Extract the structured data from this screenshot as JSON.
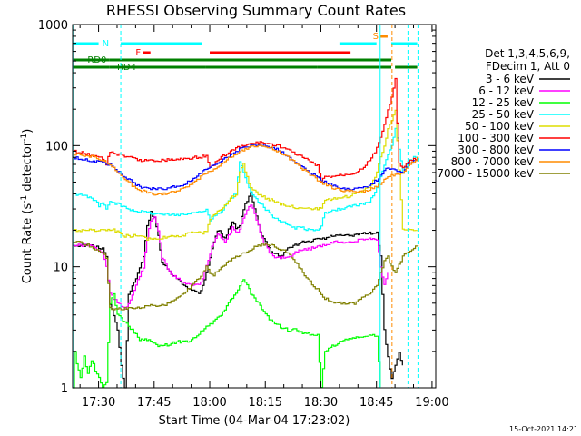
{
  "chart_data": {
    "type": "line",
    "title": "RHESSI Observing Summary Count Rates",
    "xlabel": "Start Time (04-Mar-04 17:23:02)",
    "ylabel_main": "Count Rate (s",
    "ylabel_sup": "-1",
    "ylabel_tail": " detector",
    "ylabel_close": ")",
    "yscale": "log",
    "ylim": [
      1,
      1000
    ],
    "xlim_min": [
      0,
      98
    ],
    "x_tick_labels": [
      {
        "m": 7,
        "label": "17:30"
      },
      {
        "m": 22,
        "label": "17:45"
      },
      {
        "m": 37,
        "label": "18:00"
      },
      {
        "m": 52,
        "label": "18:15"
      },
      {
        "m": 67,
        "label": "18:30"
      },
      {
        "m": 82,
        "label": "18:45"
      },
      {
        "m": 97,
        "label": "19:00"
      }
    ],
    "y_tick_labels": [
      {
        "v": 1,
        "label": "1"
      },
      {
        "v": 10,
        "label": "10"
      },
      {
        "v": 100,
        "label": "100"
      },
      {
        "v": 1000,
        "label": "1000"
      }
    ],
    "legend_header": [
      "Det 1,3,4,5,6,9,",
      "FDecim 1, Att 0"
    ],
    "series": [
      {
        "name": "3 - 6 keV",
        "color": "#000000",
        "x": [
          0,
          5,
          8,
          9,
          10,
          12,
          13,
          14,
          15,
          17,
          19,
          20,
          21,
          22,
          23,
          24,
          26,
          28,
          30,
          32,
          34,
          35,
          36,
          37,
          38,
          39,
          40,
          41,
          42,
          43,
          44,
          45,
          46,
          47,
          48,
          49,
          50,
          51,
          52,
          53,
          54,
          55,
          56,
          57,
          58,
          60,
          62,
          64,
          66,
          68,
          70,
          72,
          74,
          76,
          78,
          80,
          82,
          83,
          84,
          85,
          86,
          87,
          88,
          89
        ],
        "y": [
          15,
          15,
          14,
          12,
          5,
          3,
          1.5,
          1,
          6,
          8,
          12,
          22,
          28,
          25,
          18,
          11,
          9,
          8,
          7,
          6.5,
          6,
          7,
          9,
          12,
          16,
          20,
          19,
          17,
          20,
          24,
          21,
          22,
          30,
          35,
          40,
          30,
          22,
          18,
          16,
          14,
          13,
          13,
          12,
          13,
          14,
          15,
          16,
          16,
          17,
          17,
          18,
          18,
          18,
          18,
          19,
          19,
          19,
          12,
          3,
          1.8,
          1.2,
          1.5,
          2,
          1.5
        ]
      },
      {
        "name": "6 - 12 keV",
        "color": "#ff00ff",
        "x": [
          0,
          5,
          8,
          9,
          10,
          12,
          14,
          15,
          17,
          19,
          20,
          21,
          22,
          23,
          24,
          26,
          28,
          30,
          32,
          34,
          35,
          36,
          37,
          38,
          39,
          40,
          41,
          42,
          43,
          44,
          45,
          46,
          47,
          48,
          49,
          50,
          51,
          52,
          53,
          54,
          55,
          56,
          58,
          60,
          62,
          64,
          66,
          68,
          70,
          72,
          74,
          76,
          78,
          80,
          82,
          83,
          84,
          85
        ],
        "y": [
          15,
          15,
          13,
          10,
          6,
          5,
          4.5,
          5,
          7,
          10,
          17,
          24,
          26,
          20,
          12,
          9,
          8,
          7.5,
          7,
          7,
          8,
          10,
          13,
          16,
          19,
          17,
          16,
          18,
          21,
          19,
          20,
          25,
          30,
          33,
          28,
          22,
          17,
          15,
          13,
          12,
          12,
          12,
          12,
          13,
          14,
          14,
          15,
          15,
          16,
          16,
          16,
          16,
          17,
          17,
          17,
          10,
          7,
          9
        ]
      },
      {
        "name": "12 - 25 keV",
        "color": "#00ff00",
        "x": [
          0,
          0.5,
          1,
          2,
          3,
          4,
          5,
          6,
          7,
          8,
          9,
          10,
          11,
          12,
          14,
          16,
          18,
          20,
          22,
          24,
          26,
          28,
          30,
          32,
          34,
          36,
          38,
          40,
          42,
          44,
          46,
          48,
          50,
          52,
          54,
          56,
          58,
          60,
          62,
          64,
          66,
          67,
          68,
          70,
          72,
          74,
          76,
          78,
          80,
          82,
          83
        ],
        "y": [
          1,
          2,
          1.6,
          1.2,
          1.8,
          1.3,
          1.7,
          1.4,
          1.2,
          1,
          1.1,
          5,
          6,
          4,
          3.5,
          3,
          2.5,
          2.5,
          2.3,
          2.2,
          2.3,
          2.4,
          2.4,
          2.5,
          2.8,
          3.2,
          3.5,
          4,
          5,
          6,
          8,
          6,
          5,
          4,
          3.5,
          3.2,
          3,
          3,
          2.8,
          2.8,
          2.7,
          1,
          2,
          2.2,
          2.4,
          2.5,
          2.6,
          2.6,
          2.7,
          2.7,
          1
        ]
      },
      {
        "name": "25 - 50 keV",
        "color": "#00ffff",
        "x": [
          0,
          2,
          4,
          5,
          6,
          7,
          8,
          9,
          10,
          12,
          15,
          20,
          25,
          30,
          33,
          35,
          36,
          37,
          38,
          40,
          42,
          44,
          45,
          46,
          47,
          48,
          50,
          52,
          54,
          56,
          58,
          60,
          62,
          64,
          66,
          67,
          68,
          70,
          72,
          74,
          76,
          78,
          80,
          82,
          84,
          86,
          87,
          89,
          90,
          91,
          92,
          93
        ],
        "y": [
          40,
          39,
          38,
          36,
          35,
          32,
          34,
          30,
          34,
          33,
          30,
          28,
          27,
          27,
          28,
          29,
          30,
          24,
          26,
          28,
          35,
          40,
          75,
          60,
          48,
          42,
          35,
          30,
          26,
          24,
          22,
          21,
          21,
          20,
          20,
          22,
          28,
          29,
          30,
          31,
          32,
          33,
          34,
          45,
          70,
          100,
          140,
          60,
          70,
          75,
          80,
          80
        ]
      },
      {
        "name": "50 - 100 keV",
        "color": "#dddd00",
        "x": [
          0,
          3,
          6,
          9,
          10,
          11,
          14,
          17,
          20,
          23,
          26,
          29,
          32,
          35,
          36,
          37,
          38,
          40,
          42,
          44,
          45,
          46,
          47,
          48,
          50,
          52,
          54,
          56,
          58,
          60,
          62,
          64,
          66,
          67,
          68,
          70,
          72,
          74,
          76,
          78,
          80,
          82,
          83,
          84,
          85,
          86,
          87,
          89,
          90,
          91,
          93
        ],
        "y": [
          20,
          20,
          20,
          20,
          20,
          20,
          18,
          18,
          17,
          17,
          18,
          18,
          19,
          19,
          20,
          25,
          27,
          30,
          35,
          40,
          60,
          70,
          55,
          45,
          40,
          37,
          35,
          33,
          32,
          31,
          31,
          30,
          30,
          30,
          35,
          36,
          37,
          38,
          40,
          42,
          45,
          60,
          80,
          100,
          140,
          160,
          200,
          20,
          20,
          20,
          20
        ]
      },
      {
        "name": "100 - 300 keV",
        "color": "#ff0000",
        "x": [
          0,
          2,
          4,
          6,
          8,
          9,
          10,
          12,
          15,
          18,
          21,
          24,
          27,
          30,
          33,
          36,
          37,
          38,
          40,
          42,
          44,
          46,
          48,
          50,
          52,
          54,
          56,
          58,
          60,
          62,
          64,
          66,
          67,
          68,
          70,
          72,
          74,
          76,
          78,
          80,
          82,
          84,
          86,
          87,
          88,
          89,
          90,
          91,
          93
        ],
        "y": [
          90,
          88,
          85,
          82,
          78,
          70,
          90,
          85,
          80,
          76,
          75,
          76,
          77,
          78,
          80,
          82,
          65,
          70,
          80,
          88,
          95,
          100,
          104,
          106,
          105,
          102,
          98,
          92,
          86,
          80,
          74,
          68,
          50,
          55,
          56,
          57,
          58,
          60,
          65,
          75,
          95,
          150,
          250,
          350,
          70,
          65,
          70,
          75,
          78
        ]
      },
      {
        "name": "300 - 800 keV",
        "color": "#0000ff",
        "x": [
          0,
          2,
          4,
          6,
          8,
          10,
          12,
          14,
          16,
          18,
          20,
          22,
          24,
          26,
          28,
          30,
          32,
          34,
          36,
          37,
          38,
          40,
          42,
          44,
          46,
          48,
          50,
          52,
          54,
          56,
          58,
          60,
          62,
          64,
          66,
          68,
          70,
          72,
          74,
          76,
          78,
          80,
          82,
          84,
          85,
          89,
          90,
          92,
          93
        ],
        "y": [
          80,
          78,
          76,
          74,
          72,
          70,
          62,
          55,
          50,
          46,
          44,
          44,
          44,
          45,
          46,
          48,
          52,
          58,
          64,
          66,
          68,
          75,
          82,
          90,
          96,
          100,
          102,
          100,
          96,
          90,
          82,
          74,
          66,
          60,
          55,
          50,
          47,
          45,
          44,
          44,
          45,
          47,
          52,
          62,
          65,
          60,
          68,
          75,
          78
        ]
      },
      {
        "name": "800 - 7000 keV",
        "color": "#ff8c00",
        "x": [
          0,
          2,
          4,
          6,
          8,
          10,
          12,
          14,
          16,
          18,
          20,
          22,
          24,
          26,
          28,
          30,
          32,
          34,
          36,
          38,
          40,
          42,
          44,
          46,
          48,
          50,
          52,
          54,
          56,
          58,
          60,
          62,
          64,
          66,
          68,
          70,
          72,
          74,
          76,
          78,
          80,
          82,
          84,
          85,
          89,
          90,
          92,
          93
        ],
        "y": [
          85,
          84,
          82,
          80,
          76,
          70,
          60,
          52,
          47,
          43,
          41,
          40,
          40,
          41,
          42,
          44,
          48,
          54,
          60,
          64,
          70,
          78,
          86,
          92,
          97,
          100,
          98,
          94,
          88,
          80,
          72,
          64,
          58,
          52,
          48,
          45,
          43,
          42,
          42,
          42,
          43,
          46,
          52,
          56,
          60,
          66,
          74,
          80
        ]
      },
      {
        "name": "7000 - 15000 keV",
        "color": "#808000",
        "x": [
          0,
          2,
          4,
          6,
          8,
          9,
          10,
          12,
          14,
          16,
          18,
          20,
          22,
          24,
          26,
          28,
          30,
          32,
          34,
          35,
          36,
          37,
          38,
          40,
          42,
          44,
          46,
          48,
          50,
          52,
          54,
          56,
          58,
          60,
          62,
          64,
          66,
          68,
          70,
          72,
          74,
          76,
          78,
          80,
          82,
          83,
          84,
          85,
          86,
          87,
          89,
          90,
          92,
          93
        ],
        "y": [
          16,
          16,
          15,
          14,
          13,
          12,
          4.5,
          4.5,
          4.5,
          4.5,
          4.6,
          4.7,
          4.8,
          4.8,
          5,
          5.5,
          6,
          7,
          8,
          9,
          10,
          9,
          8.5,
          10,
          11,
          12,
          13,
          14,
          15,
          15.5,
          15,
          14,
          13,
          11,
          9,
          7.5,
          6.5,
          5.5,
          5,
          5,
          5,
          5,
          5.5,
          6,
          7,
          9,
          11,
          12,
          10,
          9,
          12,
          13,
          14,
          15
        ]
      }
    ],
    "flag_bars": [
      {
        "name": "N",
        "color": "#00ffff",
        "label_at": 8,
        "segments": [
          [
            0,
            7
          ],
          [
            13,
            35
          ],
          [
            72,
            82
          ],
          [
            86,
            93
          ]
        ]
      },
      {
        "name": "F",
        "color": "#ff0000",
        "label_at": 17,
        "segments": [
          [
            19,
            21
          ],
          [
            37,
            75
          ]
        ]
      },
      {
        "name": "S",
        "color": "#ff8c00",
        "label_at": 81,
        "segments": [
          [
            83,
            85
          ]
        ]
      },
      {
        "name": "RD0",
        "color": "#008000",
        "label_at": 4,
        "segments": [
          [
            0,
            10
          ],
          [
            10,
            86
          ]
        ]
      },
      {
        "name": "RD4",
        "color": "#008000",
        "label_at": 12,
        "segments": [
          [
            0,
            10
          ],
          [
            10,
            36
          ],
          [
            36,
            66
          ],
          [
            66,
            86
          ],
          [
            87,
            93
          ]
        ]
      }
    ],
    "vlines": [
      {
        "x": 0.3,
        "color": "#00ffff",
        "dash": "none"
      },
      {
        "x": 13.0,
        "color": "#00ffff",
        "dash": "4,3"
      },
      {
        "x": 83.0,
        "color": "#00ffff",
        "dash": "none"
      },
      {
        "x": 86.2,
        "color": "#ff8c00",
        "dash": "4,3"
      },
      {
        "x": 90.5,
        "color": "#00ffff",
        "dash": "4,3"
      },
      {
        "x": 93.2,
        "color": "#00ffff",
        "dash": "4,3"
      }
    ],
    "footer_timestamp": "15-Oct-2021 14:21"
  }
}
